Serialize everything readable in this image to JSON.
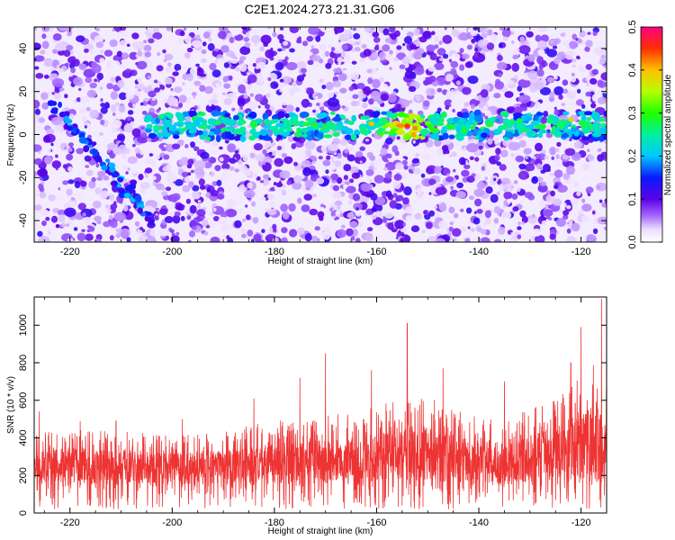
{
  "figure_title": "C2E1.2024.273.21.31.G06",
  "colors": {
    "snr_line": "#ee3333",
    "ridge_high": "#ff2200",
    "speckle": "#7a22ee"
  },
  "chart_data": [
    {
      "type": "heatmap",
      "title": "C2E1.2024.273.21.31.G06",
      "xlabel": "Height of straight line (km)",
      "ylabel": "Frequency (Hz)",
      "xlim": [
        -227,
        -115
      ],
      "ylim": [
        -50,
        50
      ],
      "xticks": [
        -220,
        -200,
        -180,
        -160,
        -140,
        -120
      ],
      "yticks": [
        -40,
        -20,
        0,
        20,
        40
      ],
      "colorbar": {
        "label": "Normalized spectral amplitude",
        "range": [
          0.0,
          0.5
        ],
        "ticks": [
          0.0,
          0.1,
          0.2,
          0.3,
          0.4,
          0.5
        ],
        "tick_labels": [
          "0.0",
          "0.1",
          "0.2",
          "0.3",
          "0.4",
          "0.5"
        ],
        "colormap": "rainbow (white-violet-blue-cyan-green-yellow-red-magenta)"
      },
      "features": [
        {
          "name": "horizontal ridge",
          "x_range": [
            -205,
            -115
          ],
          "frequency": 4,
          "peak_amplitude": 0.45,
          "peak_x": -154
        },
        {
          "name": "diagonal streak",
          "x_start": -223,
          "y_start": 14,
          "x_end": -203,
          "y_end": -42,
          "amplitude": 0.15
        }
      ]
    },
    {
      "type": "line",
      "xlabel": "Height of straight line (km)",
      "ylabel": "SNR (10 * v/v)",
      "xlim": [
        -227,
        -115
      ],
      "ylim": [
        0,
        1150
      ],
      "xticks": [
        -220,
        -200,
        -180,
        -160,
        -140,
        -120
      ],
      "yticks": [
        0,
        200,
        400,
        600,
        800,
        1000
      ],
      "series": [
        {
          "name": "SNR",
          "color": "#ee3333",
          "envelope_x": [
            -227,
            -220,
            -210,
            -200,
            -190,
            -180,
            -170,
            -160,
            -155,
            -150,
            -140,
            -130,
            -125,
            -120,
            -117,
            -115
          ],
          "envelope_base": [
            150,
            160,
            150,
            150,
            150,
            150,
            160,
            170,
            180,
            170,
            150,
            160,
            180,
            180,
            130,
            200
          ],
          "envelope_top": [
            330,
            350,
            340,
            320,
            340,
            370,
            390,
            430,
            490,
            460,
            380,
            410,
            470,
            530,
            580,
            520
          ],
          "peaks": [
            {
              "x": -226,
              "y": 540
            },
            {
              "x": -218,
              "y": 490
            },
            {
              "x": -211,
              "y": 490
            },
            {
              "x": -198,
              "y": 500
            },
            {
              "x": -184,
              "y": 610
            },
            {
              "x": -175,
              "y": 720
            },
            {
              "x": -170,
              "y": 850
            },
            {
              "x": -161,
              "y": 760
            },
            {
              "x": -154,
              "y": 1010
            },
            {
              "x": -147,
              "y": 770
            },
            {
              "x": -135,
              "y": 700
            },
            {
              "x": -122,
              "y": 800
            },
            {
              "x": -120,
              "y": 990
            },
            {
              "x": -116,
              "y": 1140
            }
          ]
        }
      ]
    }
  ]
}
